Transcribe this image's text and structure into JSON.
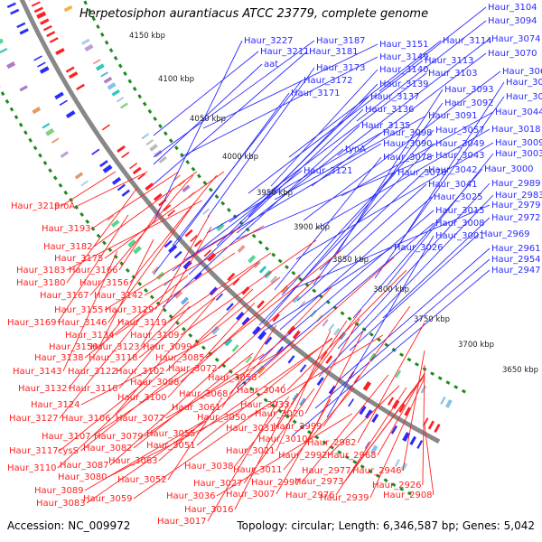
{
  "title": "Herpetosiphon aurantiacus ATCC 23779, complete genome",
  "accession": "Accession: NC_009972",
  "summary": "Topology: circular; Length: 6,346,587 bp; Genes: 5,042",
  "colors": {
    "forward_gene": "#2b2bff",
    "reverse_gene": "#ff2020",
    "backbone": "#888888",
    "tick": "#1f8a1f"
  },
  "scale_labels": [
    "4150 kbp",
    "4100 kbp",
    "4050 kbp",
    "4000 kbp",
    "3950 kbp",
    "3900 kbp",
    "3850 kbp",
    "3800 kbp",
    "3750 kbp",
    "3700 kbp",
    "3650 kbp"
  ],
  "forward_genes": [
    "Haur_3104",
    "Haur_3094",
    "Haur_3074",
    "Haur_3070",
    "Haur_3064",
    "Haur_3046",
    "Haur_3045",
    "Haur_3044",
    "Haur_3018",
    "Haur_3009",
    "Haur_3003",
    "Haur_3000",
    "Haur_2989",
    "Haur_2983",
    "Haur_2979",
    "Haur_2972",
    "Haur_2969",
    "Haur_2961",
    "Haur_2954",
    "Haur_2947",
    "Haur_3227",
    "Haur_3211",
    "aat",
    "Haur_3187",
    "Haur_3181",
    "Haur_3173",
    "Haur_3172",
    "Haur_3171",
    "Haur_3151",
    "Haur_3149",
    "Haur_3140",
    "Haur_3139",
    "Haur_3137",
    "Haur_3136",
    "Haur_3135",
    "tynA",
    "Haur_3121",
    "Haur_3114",
    "Haur_3113",
    "Haur_3103",
    "Haur_3093",
    "Haur_3092",
    "Haur_3091",
    "Haur_3098",
    "Haur_3090",
    "Haur_3078",
    "Haur_3076",
    "Haur_3057",
    "Haur_3049",
    "Haur_3043",
    "Haur_3042",
    "Haur_3041",
    "Haur_3025",
    "Haur_3015",
    "Haur_3008",
    "Haur_3001",
    "Haur_3026"
  ],
  "reverse_genes": [
    "Haur_3219",
    "proA",
    "Haur_3193",
    "Haur_3182",
    "Haur_3175",
    "Haur_3183",
    "Haur_3166",
    "Haur_3180",
    "Haur_3156",
    "Haur_3167",
    "Haur_3142",
    "Haur_3155",
    "Haur_3129",
    "Haur_3169",
    "Haur_3146",
    "Haur_3119",
    "Haur_3134",
    "Haur_3109",
    "Haur_3150",
    "Haur_3123",
    "Haur_3099",
    "Haur_3138",
    "Haur_3118",
    "Haur_3085",
    "Haur_3143",
    "Haur_3122",
    "Haur_3102",
    "Haur_3072",
    "Haur_3088",
    "Haur_3058",
    "Haur_3132",
    "Haur_3116",
    "Haur_3100",
    "Haur_3068",
    "Haur_3040",
    "Haur_3124",
    "Haur_3061",
    "Haur_3033",
    "Haur_3127",
    "Haur_3106",
    "Haur_3077",
    "Haur_3050",
    "Haur_3020",
    "Haur_3031",
    "Haur_2999",
    "Haur_3107",
    "Haur_3079",
    "Haur_3055",
    "Haur_3010",
    "Haur_2982",
    "Haur_3117",
    "cysS",
    "Haur_3082",
    "Haur_3051",
    "Haur_3021",
    "Haur_2992",
    "Haur_2968",
    "Haur_3110",
    "Haur_3087",
    "Haur_3063",
    "Haur_3038",
    "Haur_3011",
    "Haur_2977",
    "Haur_2973",
    "Haur_2946",
    "Haur_3080",
    "Haur_3052",
    "Haur_3027",
    "Haur_2997",
    "Haur_2926",
    "Haur_3089",
    "Haur_3036",
    "Haur_3007",
    "Haur_2976",
    "Haur_2939",
    "Haur_2908",
    "Haur_3083",
    "Haur_3059",
    "Haur_3016",
    "Haur_3017"
  ]
}
